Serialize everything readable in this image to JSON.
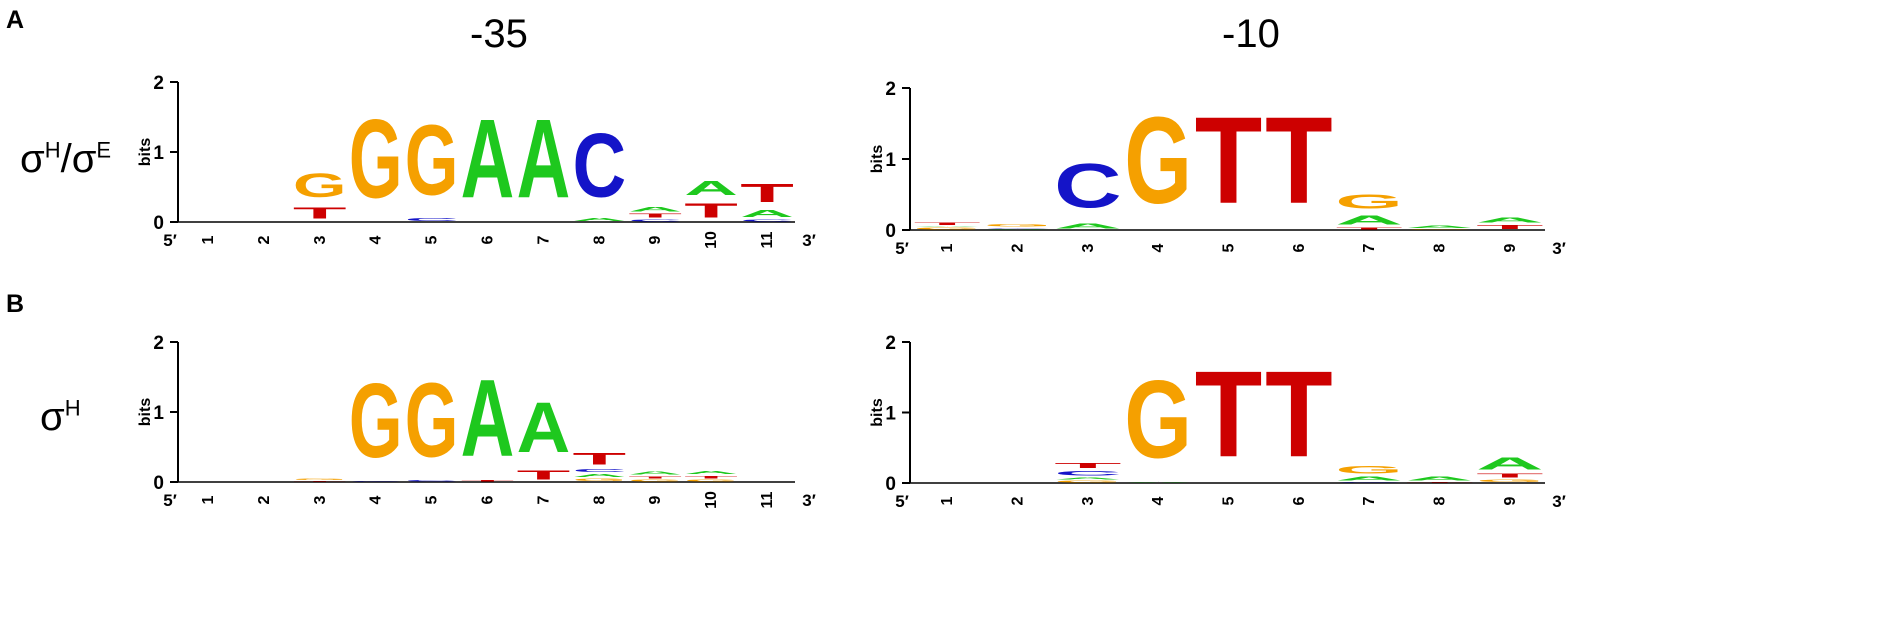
{
  "colors": {
    "A": "#1ec81e",
    "C": "#1414c8",
    "G": "#f5a000",
    "T": "#cd0000",
    "axis": "#000000"
  },
  "panels": [
    {
      "id": "A",
      "letter": "A",
      "row_label": "σH/σE",
      "row_label_main": "σ",
      "row_label_sup1": "H",
      "row_label_sep": "/",
      "row_label_main2": "σ",
      "row_label_sup2": "E"
    },
    {
      "id": "B",
      "letter": "B",
      "row_label": "σH",
      "row_label_main": "σ",
      "row_label_sup1": "H",
      "row_label_sep": "",
      "row_label_main2": "",
      "row_label_sup2": ""
    }
  ],
  "column_titles": [
    "-35",
    "-10"
  ],
  "axis": {
    "ylabel": "bits",
    "yticks": [
      "0",
      "1",
      "2"
    ],
    "ymax": 2,
    "five_prime": "5′",
    "three_prime": "3′"
  },
  "logos": [
    {
      "id": "A-35",
      "title": "-35",
      "positions": [
        {
          "pos": "1",
          "stack": []
        },
        {
          "pos": "2",
          "stack": []
        },
        {
          "pos": "3",
          "stack": [
            {
              "b": "T",
              "h": 0.25
            },
            {
              "b": "G",
              "h": 0.55
            }
          ]
        },
        {
          "pos": "4",
          "stack": [
            {
              "b": "G",
              "h": 1.8
            }
          ]
        },
        {
          "pos": "5",
          "stack": [
            {
              "b": "C",
              "h": 0.08
            },
            {
              "b": "G",
              "h": 1.6
            }
          ]
        },
        {
          "pos": "6",
          "stack": [
            {
              "b": "A",
              "h": 1.8
            }
          ]
        },
        {
          "pos": "7",
          "stack": [
            {
              "b": "A",
              "h": 1.8
            }
          ]
        },
        {
          "pos": "8",
          "stack": [
            {
              "b": "A",
              "h": 0.08
            },
            {
              "b": "C",
              "h": 1.45
            }
          ]
        },
        {
          "pos": "9",
          "stack": [
            {
              "b": "C",
              "h": 0.05
            },
            {
              "b": "T",
              "h": 0.08
            },
            {
              "b": "A",
              "h": 0.1
            }
          ]
        },
        {
          "pos": "10",
          "stack": [
            {
              "b": "T",
              "h": 0.32
            },
            {
              "b": "A",
              "h": 0.32
            }
          ]
        },
        {
          "pos": "11",
          "stack": [
            {
              "b": "C",
              "h": 0.04
            },
            {
              "b": "A",
              "h": 0.16
            },
            {
              "b": "T",
              "h": 0.42
            }
          ]
        }
      ]
    },
    {
      "id": "A-10",
      "title": "-10",
      "positions": [
        {
          "pos": "1",
          "stack": [
            {
              "b": "G",
              "h": 0.04
            },
            {
              "b": "A",
              "h": 0.02
            },
            {
              "b": "T",
              "h": 0.05
            }
          ]
        },
        {
          "pos": "2",
          "stack": [
            {
              "b": "A",
              "h": 0.02
            },
            {
              "b": "C",
              "h": 0.02
            },
            {
              "b": "G",
              "h": 0.05
            }
          ]
        },
        {
          "pos": "3",
          "stack": [
            {
              "b": "A",
              "h": 0.12
            },
            {
              "b": "C",
              "h": 1.0
            }
          ]
        },
        {
          "pos": "4",
          "stack": [
            {
              "b": "G",
              "h": 1.95
            }
          ]
        },
        {
          "pos": "5",
          "stack": [
            {
              "b": "T",
              "h": 1.95
            }
          ]
        },
        {
          "pos": "6",
          "stack": [
            {
              "b": "T",
              "h": 1.95
            }
          ]
        },
        {
          "pos": "7",
          "stack": [
            {
              "b": "T",
              "h": 0.04
            },
            {
              "b": "A",
              "h": 0.2
            },
            {
              "b": "G",
              "h": 0.32
            }
          ]
        },
        {
          "pos": "8",
          "stack": [
            {
              "b": "G",
              "h": 0.02
            },
            {
              "b": "A",
              "h": 0.05
            }
          ]
        },
        {
          "pos": "9",
          "stack": [
            {
              "b": "T",
              "h": 0.08
            },
            {
              "b": "A",
              "h": 0.12
            }
          ]
        }
      ]
    },
    {
      "id": "B-35",
      "title": "-35",
      "positions": [
        {
          "pos": "1",
          "stack": []
        },
        {
          "pos": "2",
          "stack": []
        },
        {
          "pos": "3",
          "stack": [
            {
              "b": "T",
              "h": 0.02
            },
            {
              "b": "G",
              "h": 0.03
            }
          ]
        },
        {
          "pos": "4",
          "stack": [
            {
              "b": "C",
              "h": 0.02
            },
            {
              "b": "G",
              "h": 1.7
            }
          ]
        },
        {
          "pos": "5",
          "stack": [
            {
              "b": "C",
              "h": 0.03
            },
            {
              "b": "G",
              "h": 1.7
            }
          ]
        },
        {
          "pos": "6",
          "stack": [
            {
              "b": "T",
              "h": 0.03
            },
            {
              "b": "A",
              "h": 1.75
            }
          ]
        },
        {
          "pos": "7",
          "stack": [
            {
              "b": "T",
              "h": 0.2
            },
            {
              "b": "A",
              "h": 1.15
            }
          ]
        },
        {
          "pos": "8",
          "stack": [
            {
              "b": "G",
              "h": 0.06
            },
            {
              "b": "A",
              "h": 0.07
            },
            {
              "b": "C",
              "h": 0.07
            },
            {
              "b": "T",
              "h": 0.27
            }
          ]
        },
        {
          "pos": "9",
          "stack": [
            {
              "b": "G",
              "h": 0.04
            },
            {
              "b": "T",
              "h": 0.05
            },
            {
              "b": "A",
              "h": 0.08
            }
          ]
        },
        {
          "pos": "10",
          "stack": [
            {
              "b": "G",
              "h": 0.04
            },
            {
              "b": "T",
              "h": 0.06
            },
            {
              "b": "A",
              "h": 0.07
            }
          ]
        },
        {
          "pos": "11",
          "stack": []
        }
      ]
    },
    {
      "id": "B-10",
      "title": "-10",
      "positions": [
        {
          "pos": "1",
          "stack": []
        },
        {
          "pos": "2",
          "stack": []
        },
        {
          "pos": "3",
          "stack": [
            {
              "b": "G",
              "h": 0.04
            },
            {
              "b": "A",
              "h": 0.05
            },
            {
              "b": "C",
              "h": 0.1
            },
            {
              "b": "T",
              "h": 0.12
            }
          ]
        },
        {
          "pos": "4",
          "stack": [
            {
              "b": "A",
              "h": 0.02
            },
            {
              "b": "G",
              "h": 1.75
            }
          ]
        },
        {
          "pos": "5",
          "stack": [
            {
              "b": "T",
              "h": 1.95
            }
          ]
        },
        {
          "pos": "6",
          "stack": [
            {
              "b": "T",
              "h": 1.95
            }
          ]
        },
        {
          "pos": "7",
          "stack": [
            {
              "b": "C",
              "h": 0.02
            },
            {
              "b": "A",
              "h": 0.08
            },
            {
              "b": "G",
              "h": 0.18
            }
          ]
        },
        {
          "pos": "8",
          "stack": [
            {
              "b": "T",
              "h": 0.02
            },
            {
              "b": "A",
              "h": 0.08
            }
          ]
        },
        {
          "pos": "9",
          "stack": [
            {
              "b": "G",
              "h": 0.06
            },
            {
              "b": "T",
              "h": 0.08
            },
            {
              "b": "A",
              "h": 0.28
            }
          ]
        }
      ]
    }
  ]
}
